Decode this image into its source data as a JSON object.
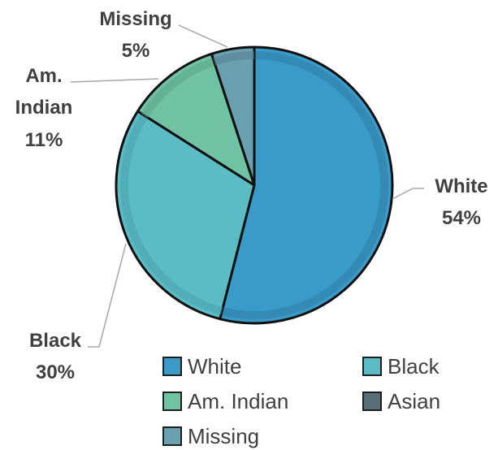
{
  "chart_data": {
    "type": "pie",
    "title": "",
    "categories": [
      "White",
      "Black",
      "Am. Indian",
      "Asian",
      "Missing"
    ],
    "values": [
      54,
      30,
      11,
      0,
      5
    ],
    "colors": [
      "#3a9bc8",
      "#5bbcc6",
      "#6fc2a3",
      "#5a6e78",
      "#6aa1b1"
    ],
    "edge_colors": [
      "#2d7ea6",
      "#49a2ab",
      "#58a686",
      "#475860",
      "#55828f"
    ],
    "data_labels": [
      {
        "name": "White",
        "value": "54%"
      },
      {
        "name": "Black",
        "value": "30%"
      },
      {
        "name": "Am.",
        "name2": "Indian",
        "value": "11%"
      },
      {
        "name": "Missing",
        "value": "5%"
      }
    ],
    "legend": {
      "position": "bottom",
      "entries": [
        "White",
        "Black",
        "Am. Indian",
        "Asian",
        "Missing"
      ]
    }
  }
}
